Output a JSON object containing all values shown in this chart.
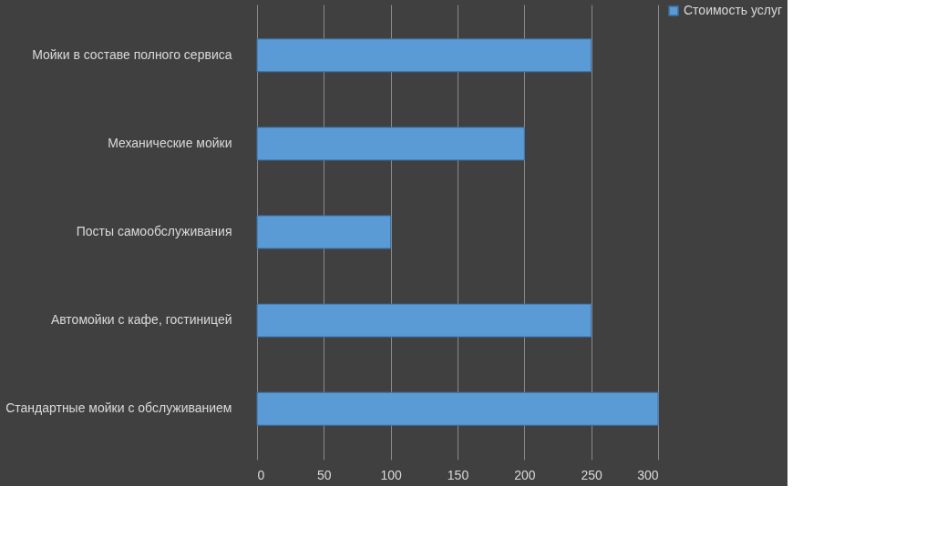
{
  "chart_data": {
    "type": "bar",
    "orientation": "horizontal",
    "categories": [
      "Мойки в составе полного сервиса",
      "Механические мойки",
      "Посты самообслуживания",
      "Автомойки с кафе, гостиницей",
      "Стандартные мойки с обслуживанием"
    ],
    "series": [
      {
        "name": "Стоимость услуг",
        "color": "#5b9bd5",
        "values": [
          250,
          200,
          100,
          250,
          300
        ]
      }
    ],
    "xlim": [
      0,
      300
    ],
    "xticks": [
      0,
      50,
      100,
      150,
      200,
      250,
      300
    ],
    "grid": "x",
    "legend": "right"
  }
}
